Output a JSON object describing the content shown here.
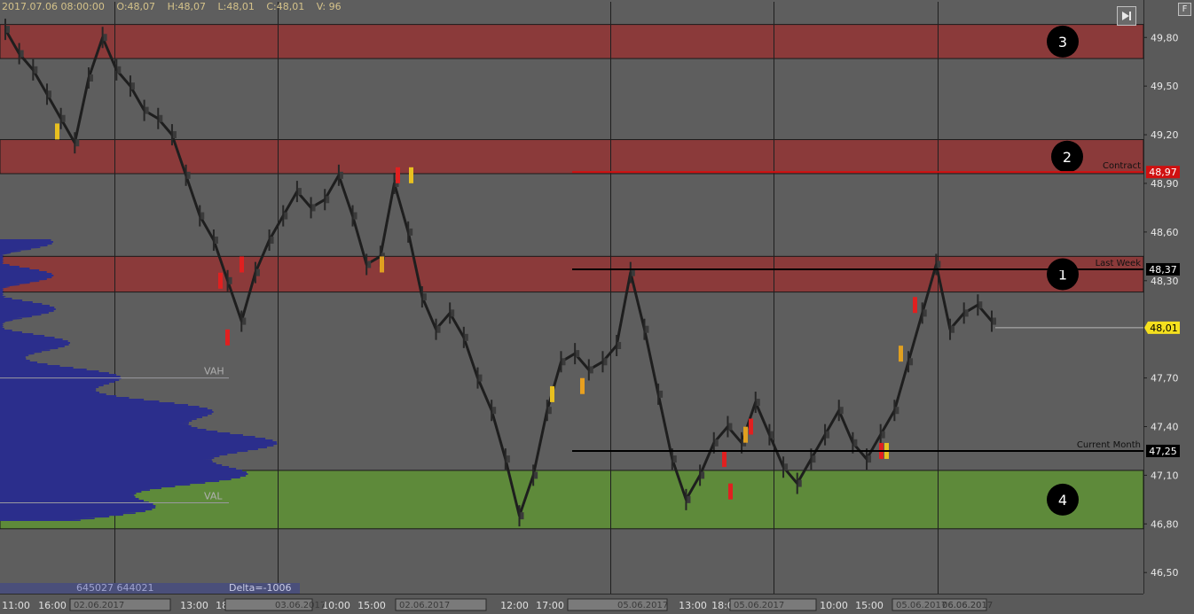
{
  "header": {
    "date": "2017.07.06 08:00:00",
    "open": "O:48,07",
    "high": "H:48,07",
    "low": "L:48,01",
    "close": "C:48,01",
    "volume": "V: 96"
  },
  "controls": {
    "corner_label": "F",
    "play_icon": "skip-end-icon"
  },
  "stats_bar": {
    "volume_pair": "645027  644021",
    "delta": "Delta=-1006"
  },
  "zones": [
    {
      "number": "3",
      "top": 49.88,
      "bottom": 49.67,
      "color": "#8b3a3a"
    },
    {
      "number": "2",
      "top": 49.17,
      "bottom": 48.96,
      "color": "#8b3a3a"
    },
    {
      "number": "1",
      "top": 48.45,
      "bottom": 48.23,
      "color": "#8b3a3a"
    },
    {
      "number": "4",
      "top": 47.13,
      "bottom": 46.77,
      "color": "#5e8a3a"
    }
  ],
  "levels": [
    {
      "name": "Contract",
      "price": "48,97",
      "color": "#d01010",
      "badge_bg": "#d01010",
      "badge_fg": "#ffffff"
    },
    {
      "name": "Last Week",
      "price": "48,37",
      "color": "#000000",
      "badge_bg": "#000000",
      "badge_fg": "#ffffff"
    },
    {
      "name": "Current Month",
      "price": "47,25",
      "color": "#000000",
      "badge_bg": "#000000",
      "badge_fg": "#ffffff"
    }
  ],
  "current_price": {
    "price": "48,01",
    "badge_bg": "#f5e01e",
    "badge_fg": "#000000"
  },
  "profile_labels": {
    "vah": "VAH",
    "val": "VAL",
    "vah_price": 47.7,
    "val_price": 46.93
  },
  "chart_data": {
    "type": "line",
    "y_ticks": [
      "49,80",
      "49,50",
      "49,20",
      "48,90",
      "48,60",
      "48,30",
      "47,70",
      "47,40",
      "47,10",
      "46,80",
      "46,50"
    ],
    "x_ticks": [
      "11:00",
      "16:00",
      "13:00",
      "18:00",
      "10:00",
      "15:00",
      "12:00",
      "17:00",
      "13:00",
      "18:00",
      "10:00",
      "15:00"
    ],
    "date_labels": [
      "02.06.2017",
      "03.06.2017",
      "02.06.2017",
      "05.06.2017",
      "05.06.2017",
      "06.06.2017",
      "05.06.2017",
      "06.06.2017"
    ],
    "ylim": [
      46.37,
      50.02
    ],
    "grid": true,
    "series": [
      {
        "values": [
          49.85,
          49.7,
          49.6,
          49.45,
          49.3,
          49.15,
          49.55,
          49.8,
          49.6,
          49.5,
          49.35,
          49.3,
          49.2,
          48.95,
          48.7,
          48.55,
          48.3,
          48.05,
          48.35,
          48.55,
          48.7,
          48.85,
          48.75,
          48.8,
          48.95,
          48.7,
          48.4,
          48.45,
          48.9,
          48.6,
          48.2,
          48.0,
          48.1,
          47.95,
          47.7,
          47.5,
          47.2,
          46.85,
          47.1,
          47.5,
          47.8,
          47.85,
          47.75,
          47.8,
          47.9,
          48.35,
          48.0,
          47.6,
          47.2,
          46.95,
          47.1,
          47.3,
          47.4,
          47.3,
          47.55,
          47.35,
          47.15,
          47.05,
          47.2,
          47.35,
          47.5,
          47.3,
          47.2,
          47.35,
          47.5,
          47.8,
          48.1,
          48.4,
          48.0,
          48.1,
          48.15,
          48.05
        ]
      }
    ]
  }
}
